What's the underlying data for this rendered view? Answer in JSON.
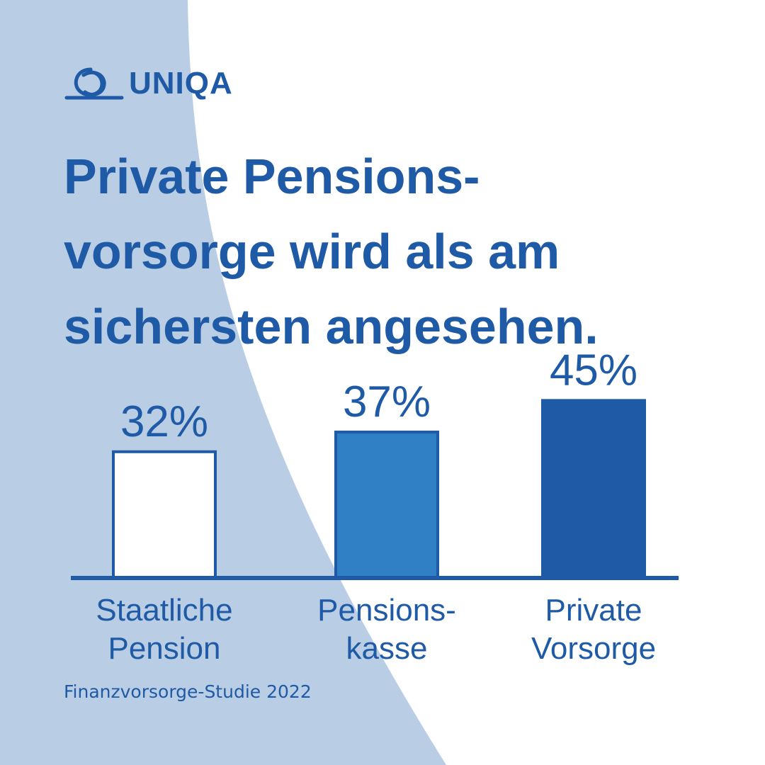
{
  "colors": {
    "background": "#ffffff",
    "light_panel": "#b9cde4",
    "brand_blue": "#1f5aa6",
    "mid_blue": "#3080c5",
    "outline_fill": "#ffffff"
  },
  "logo": {
    "text": "UNIQA",
    "icon": "uniqa-swirl-logo"
  },
  "headline": {
    "line1": "Private Pensions-",
    "line2": "vorsorge wird als am",
    "line3": "sichersten angesehen."
  },
  "source": "Finanzvorsorge-Studie 2022",
  "chart_data": {
    "type": "bar",
    "categories": [
      [
        "Staatliche",
        "Pension"
      ],
      [
        "Pensions-",
        "kasse"
      ],
      [
        "Private",
        "Vorsorge"
      ]
    ],
    "values": [
      32,
      37,
      45
    ],
    "value_labels": [
      "32%",
      "37%",
      "45%"
    ],
    "unit": "%",
    "bar_styles": [
      "outline",
      "mid",
      "dark"
    ],
    "ylim": [
      0,
      100
    ],
    "grid": false,
    "legend": "none"
  }
}
